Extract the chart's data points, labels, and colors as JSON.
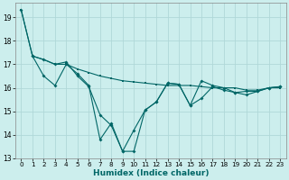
{
  "xlabel": "Humidex (Indice chaleur)",
  "xlim": [
    -0.5,
    23.5
  ],
  "ylim": [
    13,
    19.6
  ],
  "yticks": [
    13,
    14,
    15,
    16,
    17,
    18,
    19
  ],
  "xticks": [
    0,
    1,
    2,
    3,
    4,
    5,
    6,
    7,
    8,
    9,
    10,
    11,
    12,
    13,
    14,
    15,
    16,
    17,
    18,
    19,
    20,
    21,
    22,
    23
  ],
  "bg_color": "#cceeed",
  "grid_color": "#b0d8d8",
  "line_color": "#006666",
  "line1_x": [
    0,
    1,
    2,
    3,
    4,
    5,
    6,
    7,
    8,
    9,
    10,
    11,
    12,
    13,
    14,
    15,
    16,
    17,
    18,
    19,
    20,
    21,
    22,
    23
  ],
  "line1_y": [
    19.3,
    17.35,
    17.2,
    17.0,
    17.0,
    16.8,
    16.65,
    16.5,
    16.4,
    16.3,
    16.25,
    16.2,
    16.15,
    16.1,
    16.1,
    16.1,
    16.05,
    16.0,
    16.0,
    16.0,
    15.9,
    15.9,
    16.0,
    16.0
  ],
  "line2_x": [
    0,
    1,
    2,
    3,
    4,
    5,
    6,
    7,
    8,
    9,
    10,
    11,
    12,
    13,
    14,
    15,
    16,
    17,
    18,
    19,
    20,
    21,
    22,
    23
  ],
  "line2_y": [
    19.3,
    17.35,
    16.5,
    16.1,
    17.0,
    16.6,
    16.1,
    13.8,
    14.5,
    13.3,
    14.2,
    15.05,
    15.4,
    16.2,
    16.15,
    15.25,
    15.55,
    16.05,
    15.9,
    15.8,
    15.7,
    15.85,
    16.0,
    16.05
  ],
  "line3_x": [
    1,
    2,
    3,
    4,
    5,
    6,
    7,
    8,
    9,
    10,
    11,
    12,
    13,
    14,
    15,
    16,
    17,
    18,
    19,
    20,
    21,
    22,
    23
  ],
  "line3_y": [
    17.35,
    17.2,
    17.0,
    17.1,
    16.5,
    16.05,
    14.85,
    14.4,
    13.3,
    13.3,
    15.05,
    15.4,
    16.2,
    16.15,
    15.25,
    16.3,
    16.1,
    16.0,
    15.8,
    15.85,
    15.85,
    16.0,
    16.05
  ]
}
